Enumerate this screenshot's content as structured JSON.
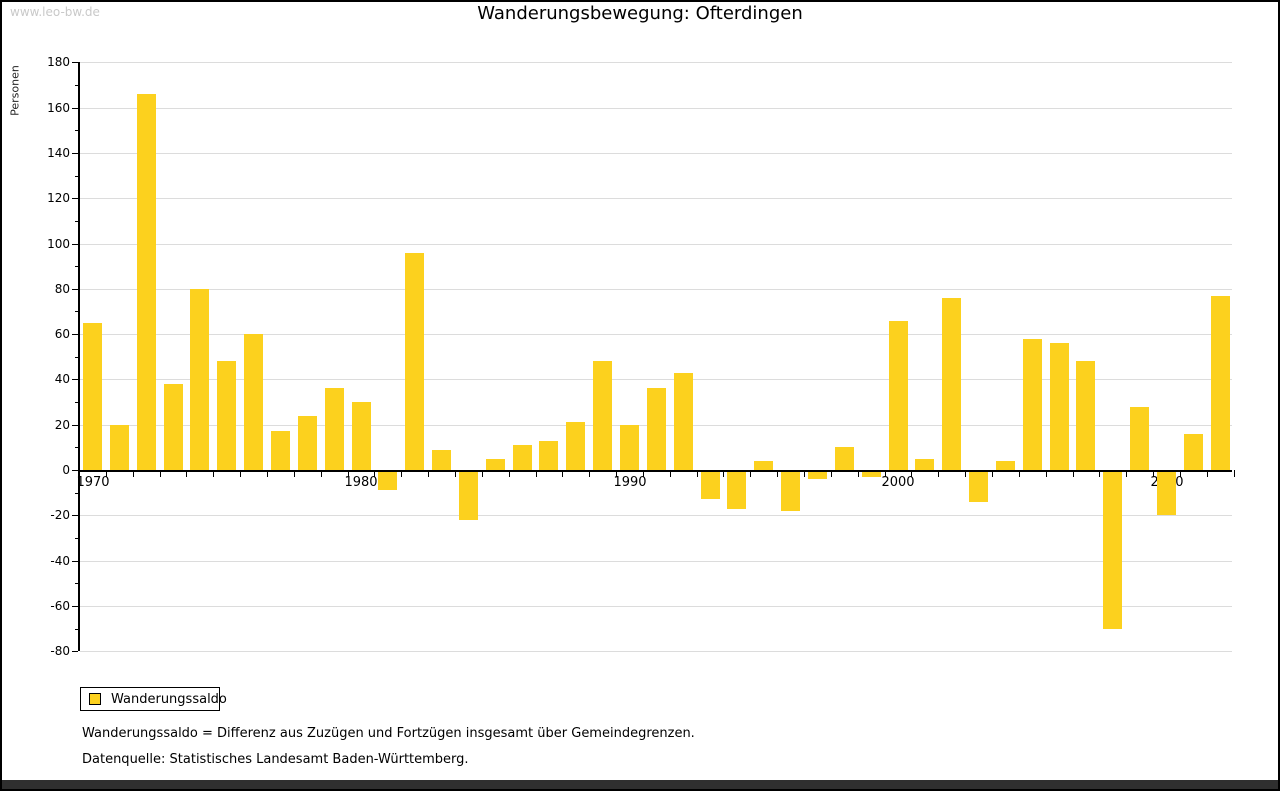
{
  "watermark": "www.leo-bw.de",
  "title": "Wanderungsbewegung: Ofterdingen",
  "y_axis": {
    "label": "Personen",
    "max": 180,
    "min": -80,
    "major_step": 20,
    "minor_step": 10,
    "major_tick_labels": [
      "180",
      "160",
      "140",
      "120",
      "100",
      "80",
      "60",
      "40",
      "20",
      "0",
      "-20",
      "-40",
      "-60",
      "-80"
    ]
  },
  "x_axis": {
    "decade_labels": [
      "1970",
      "1980",
      "1990",
      "2000",
      "2010"
    ]
  },
  "legend": {
    "label": "Wanderungssaldo",
    "position": "bottom-left"
  },
  "footnotes": [
    "Wanderungssaldo = Differenz aus Zuzügen und Fortzügen insgesamt über Gemeindegrenzen.",
    "Datenquelle: Statistisches Landesamt Baden-Württemberg."
  ],
  "colors": {
    "bar": "#fcd11e",
    "grid": "#dcdcdc",
    "axis": "#000000",
    "text": "#000000",
    "watermark": "#c9c9c9",
    "bottom_band": "#2f2f2f",
    "background": "#ffffff"
  },
  "chart_data": {
    "type": "bar",
    "title": "Wanderungsbewegung: Ofterdingen",
    "xlabel": "",
    "ylabel": "Personen",
    "ylim": [
      -80,
      180
    ],
    "grid": true,
    "legend_position": "bottom-left",
    "series_name": "Wanderungssaldo",
    "bar_color": "#fcd11e",
    "x": [
      1970,
      1971,
      1972,
      1973,
      1974,
      1975,
      1976,
      1977,
      1978,
      1979,
      1980,
      1981,
      1982,
      1983,
      1984,
      1985,
      1986,
      1987,
      1988,
      1989,
      1990,
      1991,
      1992,
      1993,
      1994,
      1995,
      1996,
      1997,
      1998,
      1999,
      2000,
      2001,
      2002,
      2003,
      2004,
      2005,
      2006,
      2007,
      2008,
      2009,
      2010,
      2011,
      2012
    ],
    "values": [
      65,
      20,
      166,
      38,
      80,
      48,
      60,
      17,
      24,
      36,
      30,
      -9,
      96,
      9,
      -22,
      5,
      11,
      13,
      21,
      48,
      20,
      36,
      43,
      -13,
      -17,
      4,
      -18,
      -4,
      10,
      -3,
      66,
      5,
      76,
      -14,
      4,
      58,
      56,
      48,
      -70,
      28,
      -20,
      16,
      77
    ]
  }
}
